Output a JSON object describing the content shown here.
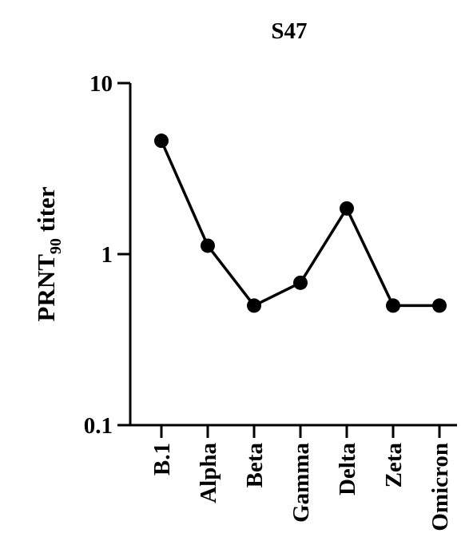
{
  "chart_data": {
    "type": "line",
    "title": "S47",
    "ylabel": "PRNT",
    "ylabel_subscript": "90",
    "ylabel_suffix": " titer",
    "xlabel": "",
    "yscale": "log",
    "ylim": [
      0.1,
      10
    ],
    "yticks": [
      0.1,
      1,
      10
    ],
    "ytick_labels": [
      "0.1",
      "1",
      "10"
    ],
    "categories": [
      "B.1",
      "Alpha",
      "Beta",
      "Gamma",
      "Delta",
      "Zeta",
      "Omicron"
    ],
    "series": [
      {
        "values": [
          4.6,
          1.12,
          0.5,
          0.68,
          1.85,
          0.5,
          0.5
        ],
        "color": "#000000"
      }
    ],
    "grid": false,
    "legend": "none"
  }
}
